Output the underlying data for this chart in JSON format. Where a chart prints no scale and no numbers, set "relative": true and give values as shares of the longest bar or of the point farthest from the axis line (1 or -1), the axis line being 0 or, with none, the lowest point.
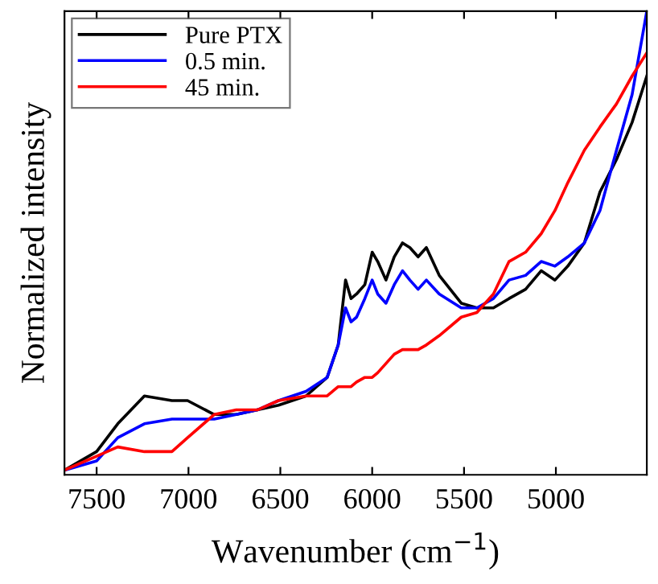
{
  "chart_data": {
    "type": "line",
    "xlabel": "Wavenumber (cm$^{−1}$)",
    "ylabel": "Normalized intensity",
    "relative": true,
    "x": [
      7675,
      7500,
      7385,
      7240,
      7090,
      7005,
      6860,
      6740,
      6625,
      6510,
      6360,
      6245,
      6185,
      6145,
      6115,
      6085,
      6040,
      6000,
      5970,
      5925,
      5880,
      5835,
      5795,
      5750,
      5705,
      5635,
      5515,
      5430,
      5340,
      5255,
      5165,
      5080,
      5005,
      4935,
      4845,
      4760,
      4670,
      4585,
      4505
    ],
    "xlim": [
      7675,
      4505
    ],
    "xticks": [
      7500,
      7000,
      6500,
      6000,
      5500,
      5000
    ],
    "series": [
      {
        "name": "Pure PTX",
        "color": "#000000",
        "values": [
          0.01,
          0.05,
          0.11,
          0.17,
          0.16,
          0.16,
          0.13,
          0.13,
          0.14,
          0.15,
          0.17,
          0.21,
          0.28,
          0.42,
          0.38,
          0.39,
          0.41,
          0.48,
          0.46,
          0.42,
          0.47,
          0.5,
          0.49,
          0.47,
          0.49,
          0.43,
          0.37,
          0.36,
          0.36,
          0.38,
          0.4,
          0.44,
          0.42,
          0.45,
          0.5,
          0.61,
          0.68,
          0.76,
          0.86
        ]
      },
      {
        "name": "0.5 min.",
        "color": "#0000ff",
        "values": [
          0.01,
          0.03,
          0.08,
          0.11,
          0.12,
          0.12,
          0.12,
          0.13,
          0.14,
          0.16,
          0.18,
          0.21,
          0.28,
          0.36,
          0.33,
          0.34,
          0.38,
          0.42,
          0.39,
          0.37,
          0.41,
          0.44,
          0.42,
          0.4,
          0.42,
          0.39,
          0.36,
          0.36,
          0.38,
          0.42,
          0.43,
          0.46,
          0.45,
          0.47,
          0.5,
          0.57,
          0.7,
          0.82,
          1.0
        ]
      },
      {
        "name": "45 min.",
        "color": "#ff0000",
        "values": [
          0.01,
          0.04,
          0.06,
          0.05,
          0.05,
          0.08,
          0.13,
          0.14,
          0.14,
          0.16,
          0.17,
          0.17,
          0.19,
          0.19,
          0.19,
          0.2,
          0.21,
          0.21,
          0.22,
          0.24,
          0.26,
          0.27,
          0.27,
          0.27,
          0.28,
          0.3,
          0.34,
          0.35,
          0.39,
          0.46,
          0.48,
          0.52,
          0.57,
          0.63,
          0.7,
          0.75,
          0.8,
          0.86,
          0.91
        ]
      }
    ],
    "legend": "top left",
    "grid": false,
    "marker": "none",
    "line_style": "solid"
  }
}
